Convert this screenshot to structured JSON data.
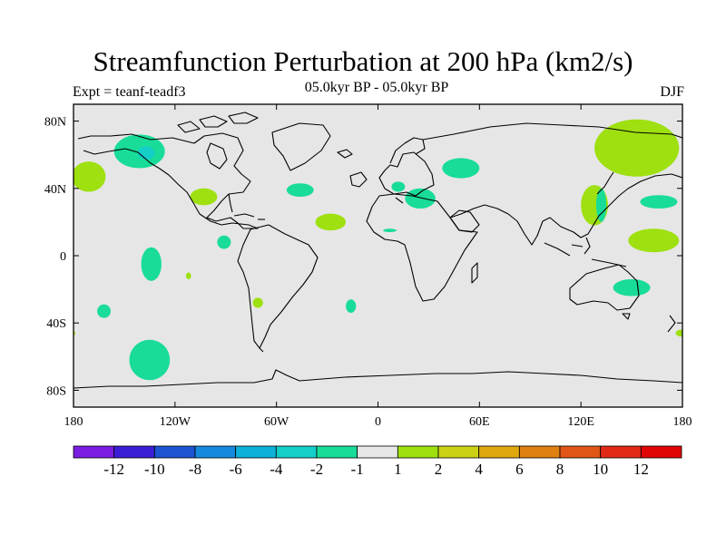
{
  "chart_data": {
    "type": "heatmap",
    "title": "Streamfunction Perturbation at 200 hPa (km2/s)",
    "subtitle": "05.0kyr BP - 05.0kyr BP",
    "left_label": "Expt = teanf-teadf3",
    "right_label": "DJF",
    "xlabel": "",
    "ylabel": "",
    "xlim": [
      -180,
      180
    ],
    "ylim": [
      -90,
      90
    ],
    "x_ticks": [
      {
        "value": -180,
        "label": "180"
      },
      {
        "value": -120,
        "label": "120W"
      },
      {
        "value": -60,
        "label": "60W"
      },
      {
        "value": 0,
        "label": "0"
      },
      {
        "value": 60,
        "label": "60E"
      },
      {
        "value": 120,
        "label": "120E"
      },
      {
        "value": 180,
        "label": "180"
      }
    ],
    "y_ticks": [
      {
        "value": 80,
        "label": "80N"
      },
      {
        "value": 40,
        "label": "40N"
      },
      {
        "value": 0,
        "label": "0"
      },
      {
        "value": -40,
        "label": "40S"
      },
      {
        "value": -80,
        "label": "80S"
      }
    ],
    "background_color": "#e6e6e6",
    "contour_levels": [
      -12,
      -10,
      -8,
      -6,
      -4,
      -2,
      -1,
      1,
      2,
      4,
      6,
      8,
      10,
      12
    ],
    "colorbar_colors": [
      "#7a1de0",
      "#3a1ed6",
      "#1c55d2",
      "#1688dd",
      "#0cb0d8",
      "#14cec8",
      "#18dc98",
      "#e6e6e6",
      "#9ee010",
      "#cdd116",
      "#e0a810",
      "#e08012",
      "#e05616",
      "#e02a16",
      "#e00606"
    ],
    "anomaly_regions": [
      {
        "lon": -141,
        "lat": 62,
        "rlon": 15,
        "rlat": 10,
        "value": -1.5
      },
      {
        "lon": -137,
        "lat": 61,
        "rlon": 5,
        "rlat": 4,
        "value": -2.5
      },
      {
        "lon": -171,
        "lat": 47,
        "rlon": 10,
        "rlat": 9,
        "value": 1.5
      },
      {
        "lon": -103,
        "lat": 35,
        "rlon": 8,
        "rlat": 5,
        "value": 1.5
      },
      {
        "lon": -46,
        "lat": 39,
        "rlon": 8,
        "rlat": 4,
        "value": -1.5
      },
      {
        "lon": -28,
        "lat": 20,
        "rlon": 9,
        "rlat": 5,
        "value": 1.5
      },
      {
        "lon": -91,
        "lat": 8,
        "rlon": 4,
        "rlat": 4,
        "value": -1.5
      },
      {
        "lon": -134,
        "lat": -5,
        "rlon": 6,
        "rlat": 10,
        "value": -1.5
      },
      {
        "lon": -112,
        "lat": -12,
        "rlon": 1.5,
        "rlat": 2,
        "value": 1.5
      },
      {
        "lon": -162,
        "lat": -33,
        "rlon": 4,
        "rlat": 4,
        "value": -1.5
      },
      {
        "lon": -71,
        "lat": -28,
        "rlon": 3,
        "rlat": 3,
        "value": 1.5
      },
      {
        "lon": -16,
        "lat": -30,
        "rlon": 3,
        "rlat": 4,
        "value": -1.5
      },
      {
        "lon": -135,
        "lat": -62,
        "rlon": 12,
        "rlat": 12,
        "value": -1.5
      },
      {
        "lon": 49,
        "lat": 52,
        "rlon": 11,
        "rlat": 6,
        "value": -1.5
      },
      {
        "lon": 12,
        "lat": 41,
        "rlon": 4,
        "rlat": 3,
        "value": -1.5
      },
      {
        "lon": 25,
        "lat": 34,
        "rlon": 9,
        "rlat": 6,
        "value": -1.5
      },
      {
        "lon": 7,
        "lat": 15,
        "rlon": 4,
        "rlat": 1,
        "value": -1.5
      },
      {
        "lon": 128,
        "lat": 30,
        "rlon": 8,
        "rlat": 12,
        "value": 1.5
      },
      {
        "lon": 132,
        "lat": 30,
        "rlon": 3,
        "rlat": 10,
        "value": -1.5
      },
      {
        "lon": 153,
        "lat": 64,
        "rlon": 25,
        "rlat": 17,
        "value": 1.5
      },
      {
        "lon": 166,
        "lat": 32,
        "rlon": 11,
        "rlat": 4,
        "value": -1.5
      },
      {
        "lon": 163,
        "lat": 9,
        "rlon": 15,
        "rlat": 7,
        "value": 1.5
      },
      {
        "lon": 150,
        "lat": -19,
        "rlon": 11,
        "rlat": 5,
        "value": -1.5
      },
      {
        "lon": 179,
        "lat": -46,
        "rlon": 3,
        "rlat": 2,
        "value": 1.5
      },
      {
        "lon": -181,
        "lat": -46,
        "rlon": 2,
        "rlat": 2,
        "value": 1.5
      }
    ]
  }
}
